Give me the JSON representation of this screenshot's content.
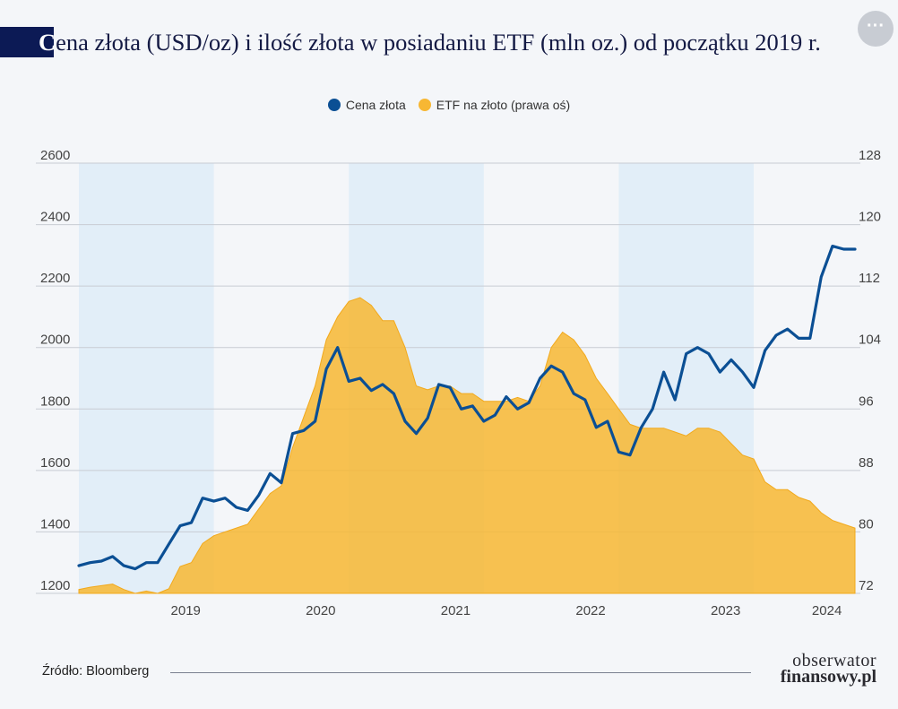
{
  "header": {
    "title_first": "C",
    "title_rest": "ena złota (USD/oz) i ilość złota w posiadaniu ETF (mln oz.) od początku 2019 r.",
    "more_label": "···"
  },
  "footer": {
    "source": "Źródło: Bloomberg",
    "brand_line1": "obserwator",
    "brand_line2": "finansowy.pl"
  },
  "colors": {
    "gold_line": "#0b4f94",
    "etf_area": "#f7b733",
    "year_band": "#e2eef8",
    "grid": "#c8ccd3"
  },
  "chart_data": {
    "type": "line",
    "x_axis": {
      "ticks": [
        "2019",
        "2020",
        "2021",
        "2022",
        "2023",
        "2024"
      ],
      "range": [
        "2018-09",
        "2024-06"
      ],
      "shaded_bands": [
        [
          "2018-09",
          "2019-09"
        ],
        [
          "2020-09",
          "2021-09"
        ],
        [
          "2022-09",
          "2023-09"
        ]
      ]
    },
    "y_axis_left": {
      "min": 1200,
      "max": 2600,
      "ticks": [
        1200,
        1400,
        1600,
        1800,
        2000,
        2200,
        2400,
        2600
      ]
    },
    "y_axis_right": {
      "min": 72,
      "max": 128,
      "ticks": [
        72,
        80,
        88,
        96,
        104,
        112,
        120,
        128
      ]
    },
    "legend_position": "top-center",
    "grid": true,
    "series": [
      {
        "name": "Cena złota",
        "type": "line",
        "axis": "left",
        "color": "#0b4f94",
        "points": [
          [
            "2018-09",
            1290
          ],
          [
            "2018-10",
            1300
          ],
          [
            "2018-11",
            1305
          ],
          [
            "2018-12",
            1320
          ],
          [
            "2019-01",
            1290
          ],
          [
            "2019-02",
            1280
          ],
          [
            "2019-03",
            1300
          ],
          [
            "2019-04",
            1300
          ],
          [
            "2019-05",
            1360
          ],
          [
            "2019-06",
            1420
          ],
          [
            "2019-07",
            1430
          ],
          [
            "2019-08",
            1510
          ],
          [
            "2019-09",
            1500
          ],
          [
            "2019-10",
            1510
          ],
          [
            "2019-11",
            1480
          ],
          [
            "2019-12",
            1470
          ],
          [
            "2020-01",
            1520
          ],
          [
            "2020-02",
            1590
          ],
          [
            "2020-03",
            1560
          ],
          [
            "2020-04",
            1720
          ],
          [
            "2020-05",
            1730
          ],
          [
            "2020-06",
            1760
          ],
          [
            "2020-07",
            1930
          ],
          [
            "2020-08",
            2000
          ],
          [
            "2020-09",
            1890
          ],
          [
            "2020-10",
            1900
          ],
          [
            "2020-11",
            1860
          ],
          [
            "2020-12",
            1880
          ],
          [
            "2021-01",
            1850
          ],
          [
            "2021-02",
            1760
          ],
          [
            "2021-03",
            1720
          ],
          [
            "2021-04",
            1770
          ],
          [
            "2021-05",
            1880
          ],
          [
            "2021-06",
            1870
          ],
          [
            "2021-07",
            1800
          ],
          [
            "2021-08",
            1810
          ],
          [
            "2021-09",
            1760
          ],
          [
            "2021-10",
            1780
          ],
          [
            "2021-11",
            1840
          ],
          [
            "2021-12",
            1800
          ],
          [
            "2022-01",
            1820
          ],
          [
            "2022-02",
            1900
          ],
          [
            "2022-03",
            1940
          ],
          [
            "2022-04",
            1920
          ],
          [
            "2022-05",
            1850
          ],
          [
            "2022-06",
            1830
          ],
          [
            "2022-07",
            1740
          ],
          [
            "2022-08",
            1760
          ],
          [
            "2022-09",
            1660
          ],
          [
            "2022-10",
            1650
          ],
          [
            "2022-11",
            1740
          ],
          [
            "2022-12",
            1800
          ],
          [
            "2023-01",
            1920
          ],
          [
            "2023-02",
            1830
          ],
          [
            "2023-03",
            1980
          ],
          [
            "2023-04",
            2000
          ],
          [
            "2023-05",
            1980
          ],
          [
            "2023-06",
            1920
          ],
          [
            "2023-07",
            1960
          ],
          [
            "2023-08",
            1920
          ],
          [
            "2023-09",
            1870
          ],
          [
            "2023-10",
            1990
          ],
          [
            "2023-11",
            2040
          ],
          [
            "2023-12",
            2060
          ],
          [
            "2024-01",
            2030
          ],
          [
            "2024-02",
            2030
          ],
          [
            "2024-03",
            2230
          ],
          [
            "2024-04",
            2330
          ],
          [
            "2024-05",
            2320
          ],
          [
            "2024-06",
            2320
          ]
        ]
      },
      {
        "name": "ETF na złoto (prawa oś)",
        "type": "area",
        "axis": "right",
        "color": "#f7b733",
        "points": [
          [
            "2018-09",
            72.5
          ],
          [
            "2018-10",
            72.8
          ],
          [
            "2018-11",
            73.0
          ],
          [
            "2018-12",
            73.2
          ],
          [
            "2019-01",
            72.5
          ],
          [
            "2019-02",
            72.0
          ],
          [
            "2019-03",
            72.3
          ],
          [
            "2019-04",
            72.0
          ],
          [
            "2019-05",
            72.6
          ],
          [
            "2019-06",
            75.5
          ],
          [
            "2019-07",
            76.0
          ],
          [
            "2019-08",
            78.5
          ],
          [
            "2019-09",
            79.5
          ],
          [
            "2019-10",
            80.0
          ],
          [
            "2019-11",
            80.5
          ],
          [
            "2019-12",
            81.0
          ],
          [
            "2020-01",
            83.0
          ],
          [
            "2020-02",
            85.0
          ],
          [
            "2020-03",
            86.0
          ],
          [
            "2020-04",
            91.0
          ],
          [
            "2020-05",
            95.0
          ],
          [
            "2020-06",
            99.0
          ],
          [
            "2020-07",
            105.0
          ],
          [
            "2020-08",
            108.0
          ],
          [
            "2020-09",
            110.0
          ],
          [
            "2020-10",
            110.5
          ],
          [
            "2020-11",
            109.5
          ],
          [
            "2020-12",
            107.5
          ],
          [
            "2021-01",
            107.5
          ],
          [
            "2021-02",
            104.0
          ],
          [
            "2021-03",
            99.0
          ],
          [
            "2021-04",
            98.5
          ],
          [
            "2021-05",
            99.0
          ],
          [
            "2021-06",
            99.0
          ],
          [
            "2021-07",
            98.0
          ],
          [
            "2021-08",
            98.0
          ],
          [
            "2021-09",
            97.0
          ],
          [
            "2021-10",
            97.0
          ],
          [
            "2021-11",
            97.0
          ],
          [
            "2021-12",
            97.5
          ],
          [
            "2022-01",
            97.0
          ],
          [
            "2022-02",
            99.0
          ],
          [
            "2022-03",
            104.0
          ],
          [
            "2022-04",
            106.0
          ],
          [
            "2022-05",
            105.0
          ],
          [
            "2022-06",
            103.0
          ],
          [
            "2022-07",
            100.0
          ],
          [
            "2022-08",
            98.0
          ],
          [
            "2022-09",
            96.0
          ],
          [
            "2022-10",
            94.0
          ],
          [
            "2022-11",
            93.5
          ],
          [
            "2022-12",
            93.5
          ],
          [
            "2023-01",
            93.5
          ],
          [
            "2023-02",
            93.0
          ],
          [
            "2023-03",
            92.5
          ],
          [
            "2023-04",
            93.5
          ],
          [
            "2023-05",
            93.5
          ],
          [
            "2023-06",
            93.0
          ],
          [
            "2023-07",
            91.5
          ],
          [
            "2023-08",
            90.0
          ],
          [
            "2023-09",
            89.5
          ],
          [
            "2023-10",
            86.5
          ],
          [
            "2023-11",
            85.5
          ],
          [
            "2023-12",
            85.5
          ],
          [
            "2024-01",
            84.5
          ],
          [
            "2024-02",
            84.0
          ],
          [
            "2024-03",
            82.5
          ],
          [
            "2024-04",
            81.5
          ],
          [
            "2024-05",
            81.0
          ],
          [
            "2024-06",
            80.5
          ]
        ]
      }
    ]
  }
}
